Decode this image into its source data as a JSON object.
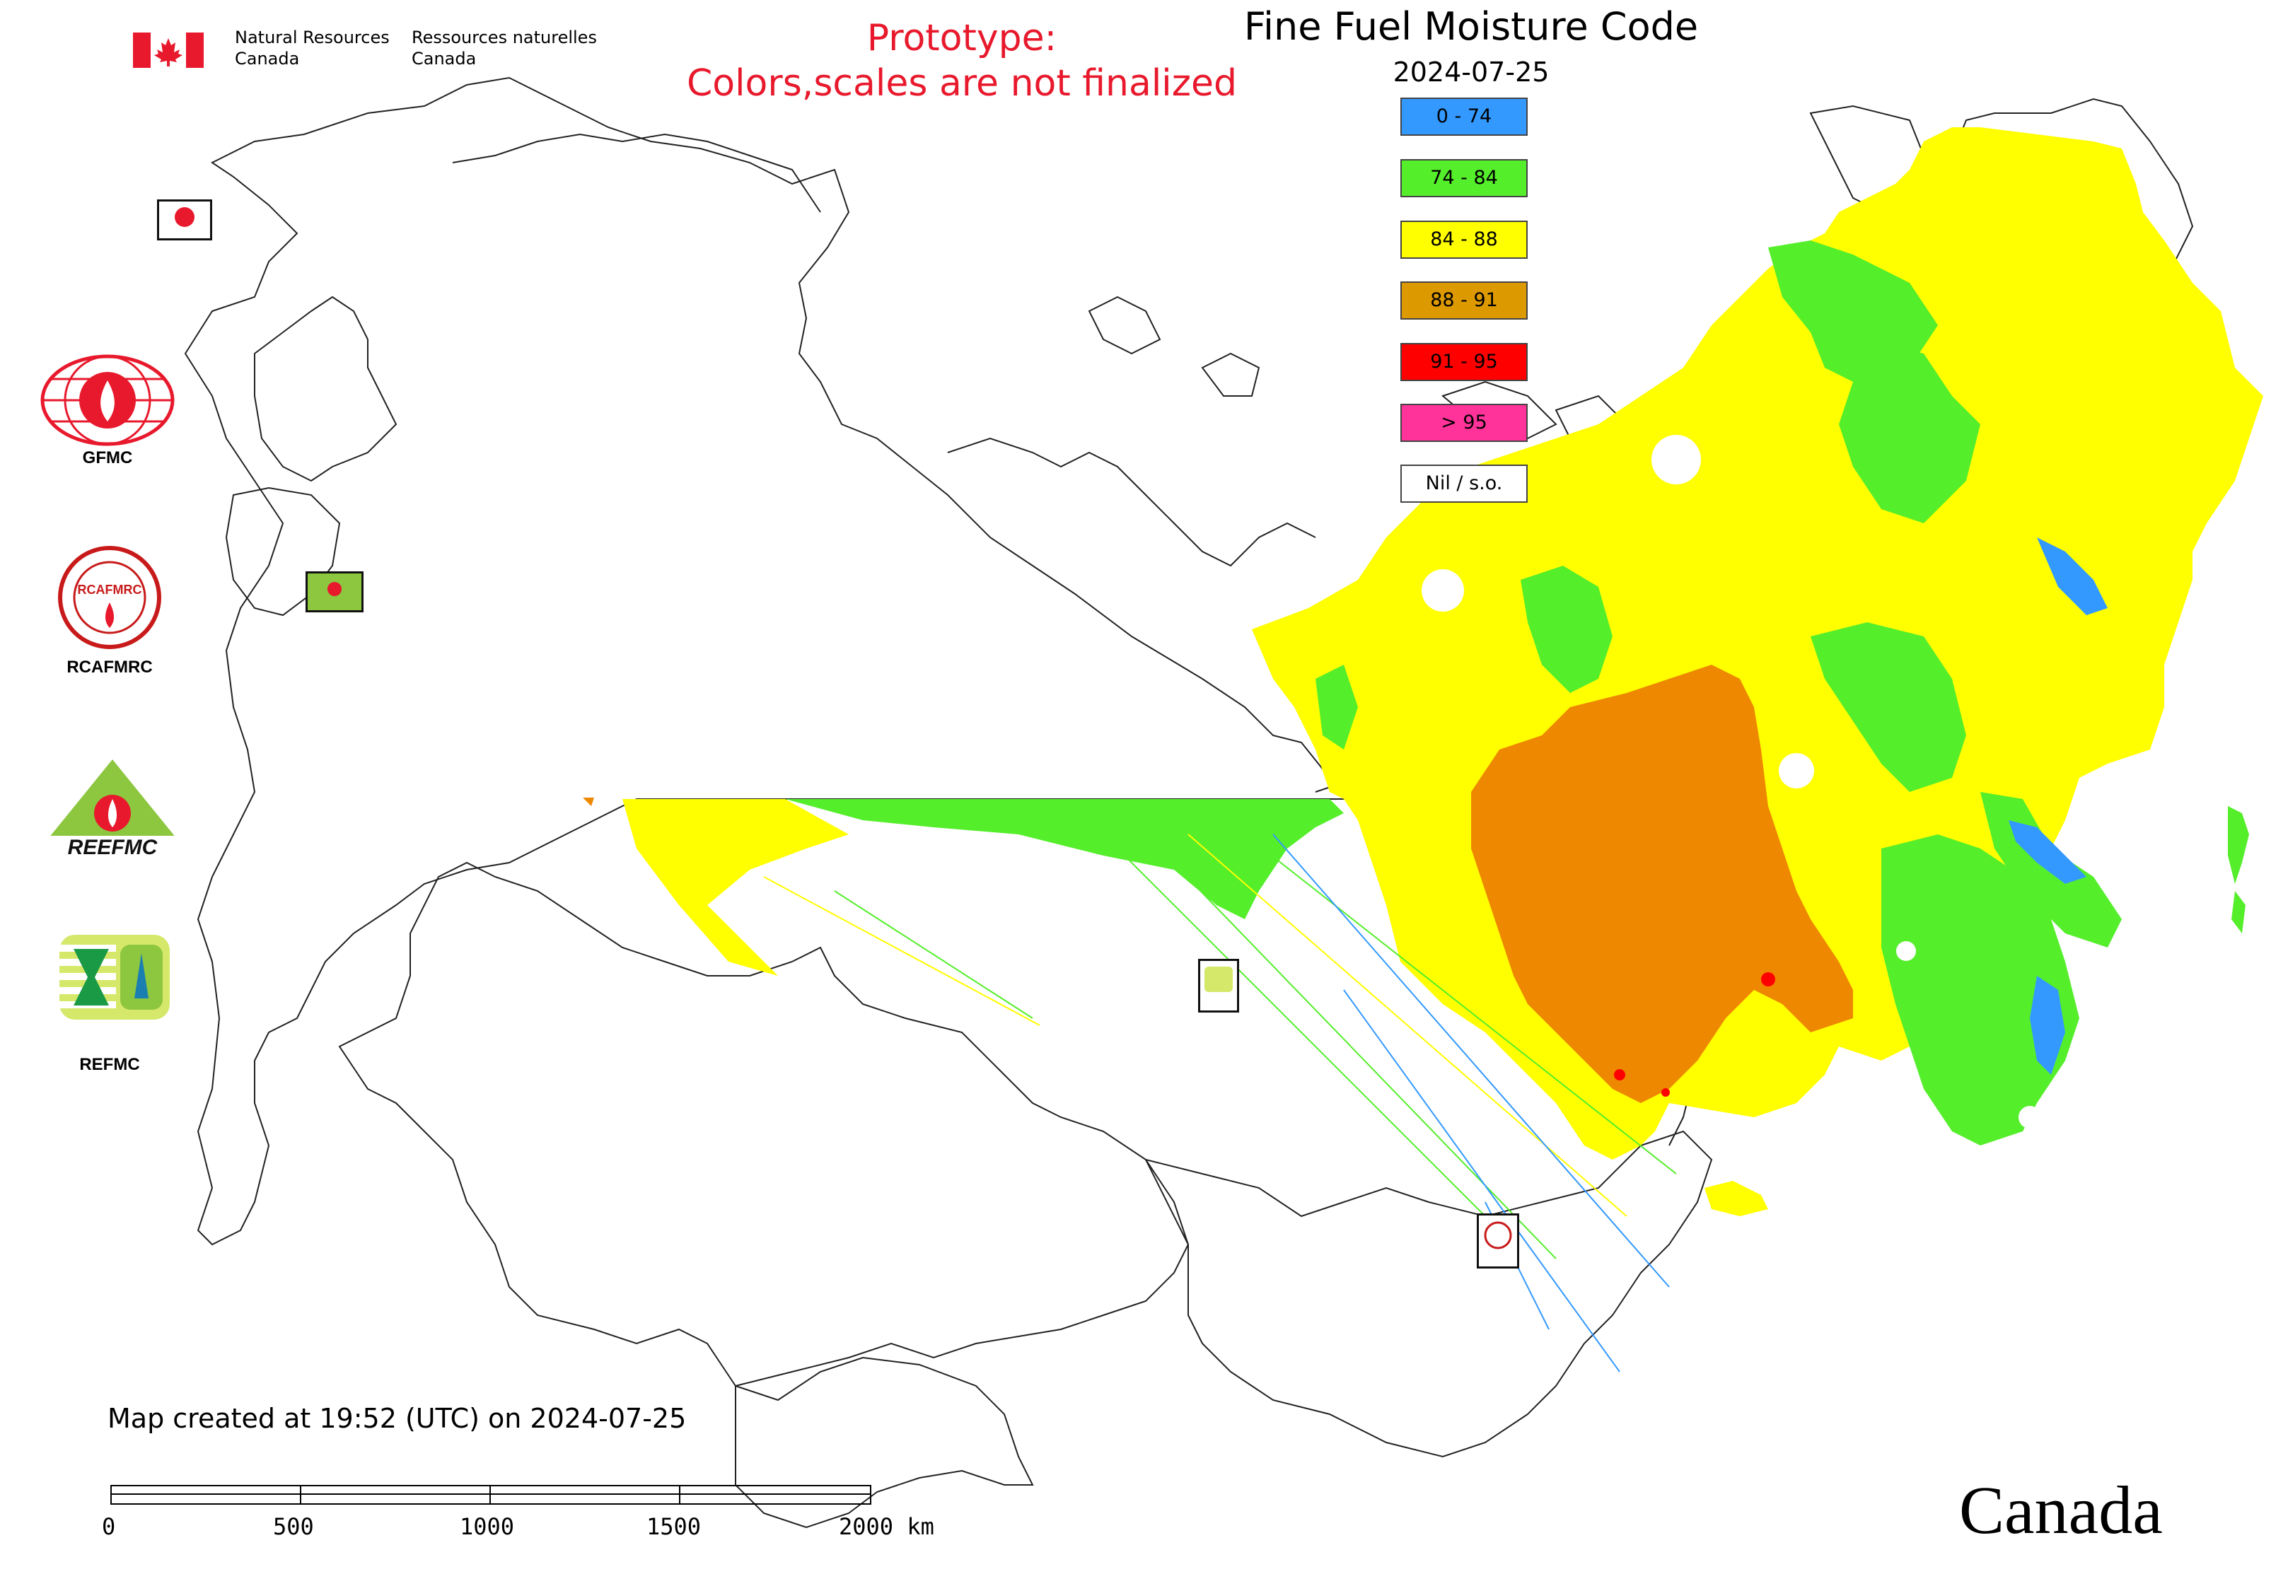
{
  "header": {
    "title": "Fine Fuel Moisture Code",
    "date": "2024-07-25",
    "prototype_line1": "Prototype:",
    "prototype_line2": "Colors,scales are not finalized"
  },
  "agency": {
    "name_en_line1": "Natural Resources",
    "name_en_line2": "Canada",
    "name_fr_line1": "Ressources naturelles",
    "name_fr_line2": "Canada",
    "wordmark": "Canada"
  },
  "legend": [
    {
      "label": "0 - 74",
      "color": "#3399ff"
    },
    {
      "label": "74 - 84",
      "color": "#55ee2b"
    },
    {
      "label": "84 - 88",
      "color": "#ffff00"
    },
    {
      "label": "88 - 91",
      "color": "#dd9900"
    },
    {
      "label": "91 - 95",
      "color": "#ff0000"
    },
    {
      "label": "> 95",
      "color": "#ff3399"
    },
    {
      "label": "Nil / s.o.",
      "color": "#ffffff"
    }
  ],
  "logos": [
    {
      "label": "GFMC",
      "icon": "gfmc-logo-icon"
    },
    {
      "label": "RCAFMRC",
      "icon": "rcafmrc-logo-icon"
    },
    {
      "label": "REEFMC",
      "icon": "reefmc-logo-icon"
    },
    {
      "label": "REFMC",
      "icon": "refmc-logo-icon"
    }
  ],
  "footer": {
    "created_text": "Map created at 19:52 (UTC) on 2024-07-25",
    "scale_labels": [
      "0",
      "500",
      "1000",
      "1500",
      "2000 km"
    ]
  }
}
